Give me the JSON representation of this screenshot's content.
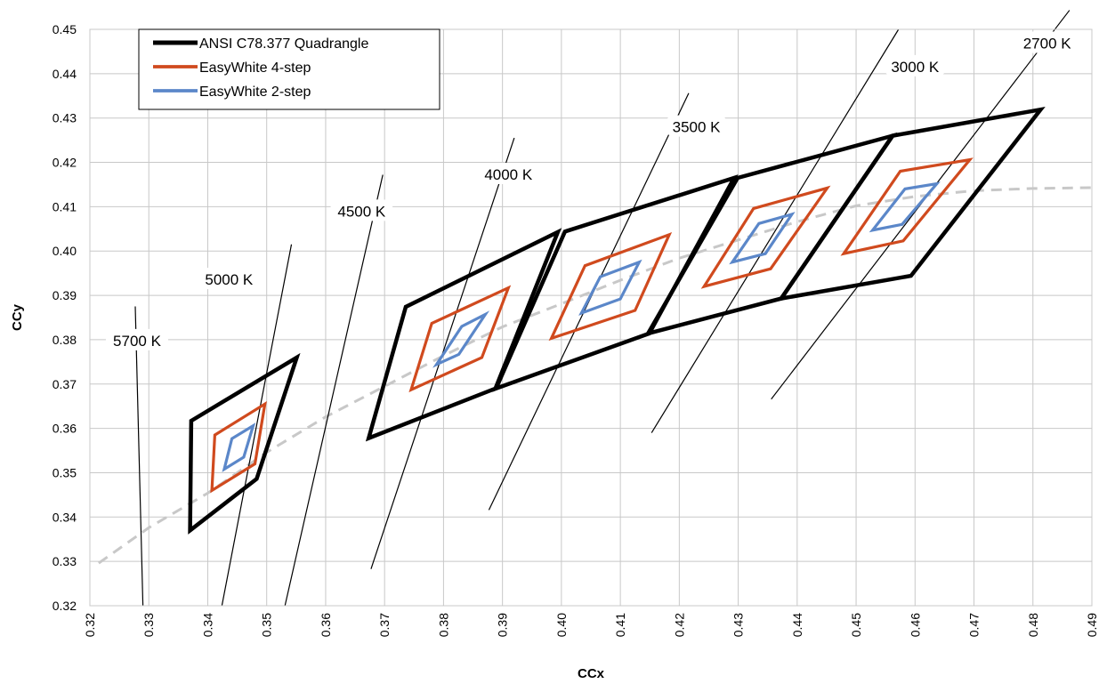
{
  "chart_data": {
    "type": "line",
    "title": "",
    "xlabel": "CCx",
    "ylabel": "CCy",
    "xlim": [
      0.32,
      0.49
    ],
    "ylim": [
      0.32,
      0.45
    ],
    "grid": true,
    "legend_position": "top-left",
    "x_ticks": [
      "0.32",
      "0.33",
      "0.34",
      "0.35",
      "0.36",
      "0.37",
      "0.38",
      "0.39",
      "0.40",
      "0.41",
      "0.42",
      "0.43",
      "0.44",
      "0.45",
      "0.46",
      "0.47",
      "0.48",
      "0.49"
    ],
    "y_ticks": [
      "0.32",
      "0.33",
      "0.34",
      "0.35",
      "0.36",
      "0.37",
      "0.38",
      "0.39",
      "0.40",
      "0.41",
      "0.42",
      "0.43",
      "0.44",
      "0.45"
    ],
    "colors": {
      "ansi": "#000000",
      "four_step": "#d04a1e",
      "two_step": "#5b87c9",
      "locus": "#c8c8c8",
      "grid": "#c8c8c8"
    },
    "series": [
      {
        "name": "ANSI C78.377 Quadrangle",
        "color": "#000000",
        "polygons": [
          [
            [
              0.337,
              0.337
            ],
            [
              0.3483,
              0.3486
            ],
            [
              0.3551,
              0.376
            ],
            [
              0.3372,
              0.3617
            ]
          ],
          [
            [
              0.3673,
              0.3578
            ],
            [
              0.3888,
              0.369
            ],
            [
              0.3994,
              0.4043
            ],
            [
              0.3736,
              0.3874
            ]
          ],
          [
            [
              0.3889,
              0.369
            ],
            [
              0.4149,
              0.3814
            ],
            [
              0.4293,
              0.4165
            ],
            [
              0.4006,
              0.4044
            ]
          ],
          [
            [
              0.4147,
              0.3814
            ],
            [
              0.4373,
              0.3893
            ],
            [
              0.4562,
              0.426
            ],
            [
              0.4299,
              0.4165
            ]
          ],
          [
            [
              0.4373,
              0.3893
            ],
            [
              0.4593,
              0.3944
            ],
            [
              0.4813,
              0.4319
            ],
            [
              0.4562,
              0.426
            ]
          ]
        ]
      },
      {
        "name": "EasyWhite 4-step",
        "color": "#d04a1e",
        "polygons": [
          [
            [
              0.3407,
              0.346
            ],
            [
              0.348,
              0.352
            ],
            [
              0.3497,
              0.3655
            ],
            [
              0.3412,
              0.3585
            ]
          ],
          [
            [
              0.3745,
              0.3687
            ],
            [
              0.3865,
              0.376
            ],
            [
              0.391,
              0.3917
            ],
            [
              0.378,
              0.3837
            ]
          ],
          [
            [
              0.3983,
              0.3803
            ],
            [
              0.4125,
              0.3866
            ],
            [
              0.4183,
              0.4037
            ],
            [
              0.404,
              0.3967
            ]
          ],
          [
            [
              0.4242,
              0.392
            ],
            [
              0.4355,
              0.396
            ],
            [
              0.4451,
              0.4142
            ],
            [
              0.4326,
              0.4096
            ]
          ],
          [
            [
              0.4479,
              0.3994
            ],
            [
              0.458,
              0.4023
            ],
            [
              0.4693,
              0.4206
            ],
            [
              0.4575,
              0.418
            ]
          ]
        ]
      },
      {
        "name": "EasyWhite 2-step",
        "color": "#5b87c9",
        "polygons": [
          [
            [
              0.3428,
              0.3508
            ],
            [
              0.3461,
              0.3535
            ],
            [
              0.3477,
              0.3606
            ],
            [
              0.3441,
              0.3577
            ]
          ],
          [
            [
              0.3788,
              0.3744
            ],
            [
              0.3826,
              0.3767
            ],
            [
              0.3871,
              0.3857
            ],
            [
              0.3831,
              0.383
            ]
          ],
          [
            [
              0.4034,
              0.386
            ],
            [
              0.41,
              0.3892
            ],
            [
              0.4132,
              0.3975
            ],
            [
              0.4066,
              0.3942
            ]
          ],
          [
            [
              0.429,
              0.3975
            ],
            [
              0.4346,
              0.3994
            ],
            [
              0.4391,
              0.4083
            ],
            [
              0.4335,
              0.4062
            ]
          ],
          [
            [
              0.4528,
              0.4047
            ],
            [
              0.4578,
              0.406
            ],
            [
              0.4637,
              0.4152
            ],
            [
              0.4583,
              0.414
            ]
          ]
        ]
      }
    ],
    "planckian_locus": [
      [
        0.3215,
        0.3296
      ],
      [
        0.33,
        0.3376
      ],
      [
        0.34,
        0.3454
      ],
      [
        0.35,
        0.3546
      ],
      [
        0.36,
        0.3626
      ],
      [
        0.37,
        0.3695
      ],
      [
        0.38,
        0.3764
      ],
      [
        0.39,
        0.3829
      ],
      [
        0.4,
        0.3881
      ],
      [
        0.41,
        0.3934
      ],
      [
        0.42,
        0.3984
      ],
      [
        0.43,
        0.4025
      ],
      [
        0.44,
        0.4066
      ],
      [
        0.45,
        0.4102
      ],
      [
        0.46,
        0.4123
      ],
      [
        0.47,
        0.4136
      ],
      [
        0.48,
        0.4141
      ],
      [
        0.49,
        0.4143
      ]
    ],
    "isotherms": [
      {
        "label": "5700 K",
        "line": [
          [
            0.3277,
            0.3875
          ],
          [
            0.329,
            0.32
          ]
        ],
        "label_at": [
          0.328,
          0.3798
        ]
      },
      {
        "label": "5000 K",
        "line": [
          [
            0.3424,
            0.32
          ],
          [
            0.3542,
            0.4015
          ]
        ],
        "label_at": [
          0.3436,
          0.3936
        ]
      },
      {
        "label": "4500 K",
        "line": [
          [
            0.3531,
            0.32
          ],
          [
            0.3697,
            0.4172
          ]
        ],
        "label_at": [
          0.3661,
          0.409
        ]
      },
      {
        "label": "4000 K",
        "line": [
          [
            0.3677,
            0.3283
          ],
          [
            0.392,
            0.4255
          ]
        ],
        "label_at": [
          0.391,
          0.4173
        ]
      },
      {
        "label": "3500 K",
        "line": [
          [
            0.3877,
            0.3416
          ],
          [
            0.4216,
            0.4356
          ]
        ],
        "label_at": [
          0.4229,
          0.428
        ]
      },
      {
        "label": "3000 K",
        "line": [
          [
            0.4153,
            0.359
          ],
          [
            0.4572,
            0.45
          ]
        ],
        "label_at": [
          0.46,
          0.4416
        ]
      },
      {
        "label": "2700 K",
        "line": [
          [
            0.4356,
            0.3666
          ],
          [
            0.4862,
            0.4543
          ]
        ],
        "label_at": [
          0.4824,
          0.4469
        ]
      }
    ]
  }
}
